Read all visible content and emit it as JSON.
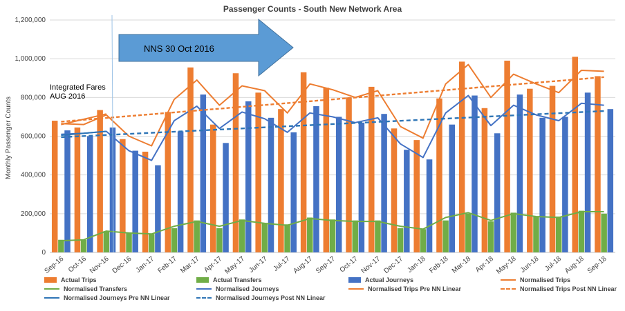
{
  "chart_data": {
    "type": "bar",
    "title": "Passenger Counts - South New Network Area",
    "ylabel": "Monthly Passenger Counts",
    "xlabel": "",
    "ylim": [
      0,
      1200000
    ],
    "y_ticks": [
      "0",
      "200,000",
      "400,000",
      "600,000",
      "800,000",
      "1,000,000",
      "1,200,000"
    ],
    "grid": true,
    "legend_position": "bottom",
    "categories": [
      "Sep-16",
      "Oct-16",
      "Nov-16",
      "Dec-16",
      "Jan-17",
      "Feb-17",
      "Mar-17",
      "Apr-17",
      "May-17",
      "Jun-17",
      "Jul-17",
      "Aug-17",
      "Sep-17",
      "Oct-17",
      "Nov-17",
      "Dec-17",
      "Jan-18",
      "Feb-18",
      "Mar-18",
      "Apr-18",
      "May-18",
      "Jun-18",
      "Jul-18",
      "Aug-18",
      "Sep-18"
    ],
    "series": [
      {
        "name": "Actual Trips",
        "kind": "bar",
        "color": "#ED7D31",
        "values": [
          680000,
          645000,
          735000,
          585000,
          520000,
          725000,
          955000,
          660000,
          925000,
          825000,
          740000,
          930000,
          850000,
          800000,
          855000,
          640000,
          580000,
          795000,
          985000,
          745000,
          990000,
          845000,
          860000,
          1010000,
          910000
        ]
      },
      {
        "name": "Actual Transfers",
        "kind": "bar",
        "color": "#70AD47",
        "values": [
          65000,
          65000,
          110000,
          100000,
          95000,
          125000,
          165000,
          125000,
          170000,
          150000,
          145000,
          180000,
          170000,
          165000,
          165000,
          125000,
          120000,
          165000,
          200000,
          160000,
          205000,
          185000,
          185000,
          215000,
          200000
        ]
      },
      {
        "name": "Actual Journeys",
        "kind": "bar",
        "color": "#4472C4",
        "values": [
          630000,
          600000,
          645000,
          525000,
          450000,
          625000,
          815000,
          565000,
          780000,
          695000,
          620000,
          755000,
          700000,
          670000,
          715000,
          530000,
          480000,
          660000,
          810000,
          615000,
          815000,
          695000,
          700000,
          825000,
          740000
        ]
      },
      {
        "name": "Normalised Trips",
        "kind": "line",
        "color": "#ED7D31",
        "values": [
          665000,
          660000,
          710000,
          600000,
          550000,
          790000,
          890000,
          760000,
          860000,
          835000,
          720000,
          870000,
          840000,
          800000,
          835000,
          650000,
          590000,
          870000,
          970000,
          800000,
          920000,
          870000,
          825000,
          940000,
          935000
        ]
      },
      {
        "name": "Normalised Transfers",
        "kind": "line",
        "color": "#70AD47",
        "values": [
          60000,
          65000,
          110000,
          100000,
          95000,
          135000,
          160000,
          135000,
          165000,
          150000,
          140000,
          175000,
          165000,
          160000,
          160000,
          135000,
          120000,
          180000,
          205000,
          165000,
          200000,
          185000,
          180000,
          210000,
          210000
        ]
      },
      {
        "name": "Normalised Journeys",
        "kind": "line",
        "color": "#4472C4",
        "values": [
          610000,
          615000,
          625000,
          525000,
          475000,
          680000,
          755000,
          640000,
          725000,
          690000,
          620000,
          720000,
          700000,
          670000,
          695000,
          560000,
          490000,
          720000,
          810000,
          655000,
          760000,
          710000,
          680000,
          770000,
          760000
        ]
      },
      {
        "name": "Normalised Trips Pre NN Linear",
        "kind": "line",
        "color": "#ED7D31",
        "x_start": "Sep-16",
        "x_end": "Nov-16",
        "values_at_ends": [
          660000,
          715000
        ]
      },
      {
        "name": "Normalised Trips Post NN Linear",
        "kind": "trend-dashed",
        "color": "#ED7D31",
        "x_start": "Sep-16",
        "x_end": "Sep-18",
        "values_at_ends": [
          675000,
          905000
        ]
      },
      {
        "name": "Normalised Journeys Pre NN Linear",
        "kind": "line",
        "color": "#2E75B6",
        "x_start": "Sep-16",
        "x_end": "Nov-16",
        "values_at_ends": [
          605000,
          625000
        ]
      },
      {
        "name": "Normalised Journeys Post NN Linear",
        "kind": "trend-dashed",
        "color": "#2E75B6",
        "x_start": "Sep-16",
        "x_end": "Sep-18",
        "values_at_ends": [
          595000,
          730000
        ]
      }
    ],
    "annotations": [
      {
        "text": "NNS 30 Oct 2016",
        "kind": "arrow",
        "color": "#5B9BD5"
      },
      {
        "text_lines": [
          "Integrated Fares",
          "AUG 2016"
        ],
        "kind": "label"
      }
    ]
  }
}
